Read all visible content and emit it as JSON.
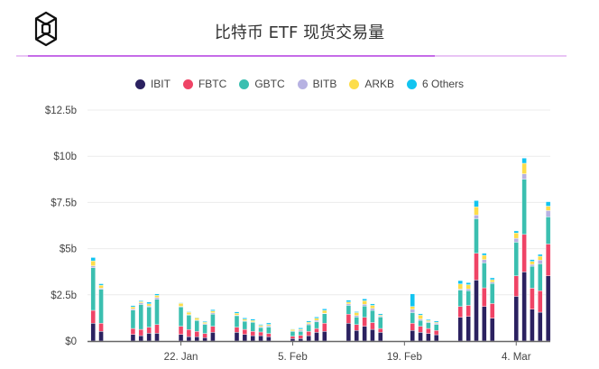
{
  "header": {
    "title": "比特币 ETF 现货交易量",
    "logo": "cube-logo"
  },
  "colors": {
    "accent": "#c66ce8",
    "accent_light": "#e9c4f5"
  },
  "chart_data": {
    "type": "bar",
    "stacked": true,
    "title": "比特币 ETF 现货交易量",
    "xlabel": "",
    "ylabel": "",
    "ylim": [
      0,
      12.5
    ],
    "y_unit": "billion USD",
    "yticks": [
      "$0",
      "$2.5b",
      "$5b",
      "$7.5b",
      "$10b",
      "$12.5b"
    ],
    "xticks": [
      "22. Jan",
      "5. Feb",
      "19. Feb",
      "4. Mar"
    ],
    "xtick_dates": [
      "Jan 22",
      "Feb 5",
      "Feb 19",
      "Mar 4"
    ],
    "grid": true,
    "legend_position": "top",
    "categories": [
      "Jan 11",
      "Jan 12",
      "Jan 16",
      "Jan 17",
      "Jan 18",
      "Jan 19",
      "Jan 22",
      "Jan 23",
      "Jan 24",
      "Jan 25",
      "Jan 26",
      "Jan 29",
      "Jan 30",
      "Jan 31",
      "Feb 1",
      "Feb 2",
      "Feb 5",
      "Feb 6",
      "Feb 7",
      "Feb 8",
      "Feb 9",
      "Feb 12",
      "Feb 13",
      "Feb 14",
      "Feb 15",
      "Feb 16",
      "Feb 20",
      "Feb 21",
      "Feb 22",
      "Feb 23",
      "Feb 26",
      "Feb 27",
      "Feb 28",
      "Feb 29",
      "Mar 1",
      "Mar 4",
      "Mar 5",
      "Mar 6",
      "Mar 7",
      "Mar 8"
    ],
    "series": [
      {
        "name": "IBIT",
        "color": "#2b2160",
        "values": [
          0.96,
          0.52,
          0.36,
          0.29,
          0.42,
          0.42,
          0.36,
          0.24,
          0.23,
          0.18,
          0.47,
          0.47,
          0.36,
          0.29,
          0.29,
          0.23,
          0.13,
          0.13,
          0.29,
          0.47,
          0.52,
          0.96,
          0.57,
          0.8,
          0.63,
          0.47,
          0.57,
          0.47,
          0.41,
          0.34,
          1.28,
          1.33,
          3.3,
          1.87,
          1.24,
          2.42,
          3.74,
          1.72,
          1.56,
          3.53
        ]
      },
      {
        "name": "FBTC",
        "color": "#ef4466",
        "values": [
          0.7,
          0.44,
          0.32,
          0.34,
          0.33,
          0.47,
          0.44,
          0.38,
          0.29,
          0.23,
          0.33,
          0.28,
          0.27,
          0.23,
          0.2,
          0.18,
          0.13,
          0.18,
          0.23,
          0.21,
          0.44,
          0.49,
          0.32,
          0.48,
          0.37,
          0.21,
          0.39,
          0.33,
          0.27,
          0.23,
          0.59,
          0.6,
          1.45,
          1.01,
          0.79,
          1.11,
          2.03,
          1.14,
          1.16,
          1.72
        ]
      },
      {
        "name": "GBTC",
        "color": "#3bbfb0",
        "values": [
          2.31,
          1.84,
          0.99,
          1.35,
          1.1,
          1.37,
          1.05,
          0.78,
          0.59,
          0.48,
          0.66,
          0.62,
          0.44,
          0.49,
          0.24,
          0.35,
          0.26,
          0.21,
          0.36,
          0.36,
          0.52,
          0.48,
          0.41,
          0.61,
          0.66,
          0.62,
          0.58,
          0.32,
          0.32,
          0.32,
          0.89,
          0.79,
          1.87,
          1.35,
          1.08,
          1.82,
          2.99,
          1.19,
          1.46,
          1.47
        ]
      },
      {
        "name": "BITB",
        "color": "#b7b2e2",
        "values": [
          0.1,
          0.06,
          0.07,
          0.08,
          0.05,
          0.1,
          0.03,
          0.03,
          0.03,
          0.05,
          0.07,
          0.03,
          0.03,
          0.03,
          0.05,
          0.07,
          0.03,
          0.07,
          0.06,
          0.08,
          0.03,
          0.08,
          0.08,
          0.1,
          0.11,
          0.05,
          0.18,
          0.07,
          0.05,
          0.07,
          0.05,
          0.1,
          0.2,
          0.18,
          0.08,
          0.21,
          0.29,
          0.1,
          0.2,
          0.34
        ]
      },
      {
        "name": "ARKB",
        "color": "#fddd4a",
        "values": [
          0.27,
          0.16,
          0.11,
          0.07,
          0.11,
          0.11,
          0.16,
          0.13,
          0.11,
          0.07,
          0.1,
          0.1,
          0.08,
          0.07,
          0.07,
          0.07,
          0.07,
          0.05,
          0.08,
          0.11,
          0.15,
          0.1,
          0.16,
          0.19,
          0.16,
          0.05,
          0.15,
          0.21,
          0.07,
          0.05,
          0.28,
          0.23,
          0.44,
          0.23,
          0.13,
          0.29,
          0.57,
          0.16,
          0.21,
          0.24
        ]
      },
      {
        "name": "6 Others",
        "color": "#12c4f0",
        "values": [
          0.18,
          0.08,
          0.07,
          0.05,
          0.1,
          0.08,
          0.03,
          0.03,
          0.03,
          0.05,
          0.07,
          0.08,
          0.07,
          0.08,
          0.05,
          0.08,
          0.03,
          0.07,
          0.07,
          0.07,
          0.08,
          0.1,
          0.05,
          0.1,
          0.08,
          0.07,
          0.68,
          0.07,
          0.05,
          0.07,
          0.18,
          0.11,
          0.34,
          0.11,
          0.1,
          0.11,
          0.28,
          0.1,
          0.1,
          0.24
        ]
      }
    ]
  }
}
